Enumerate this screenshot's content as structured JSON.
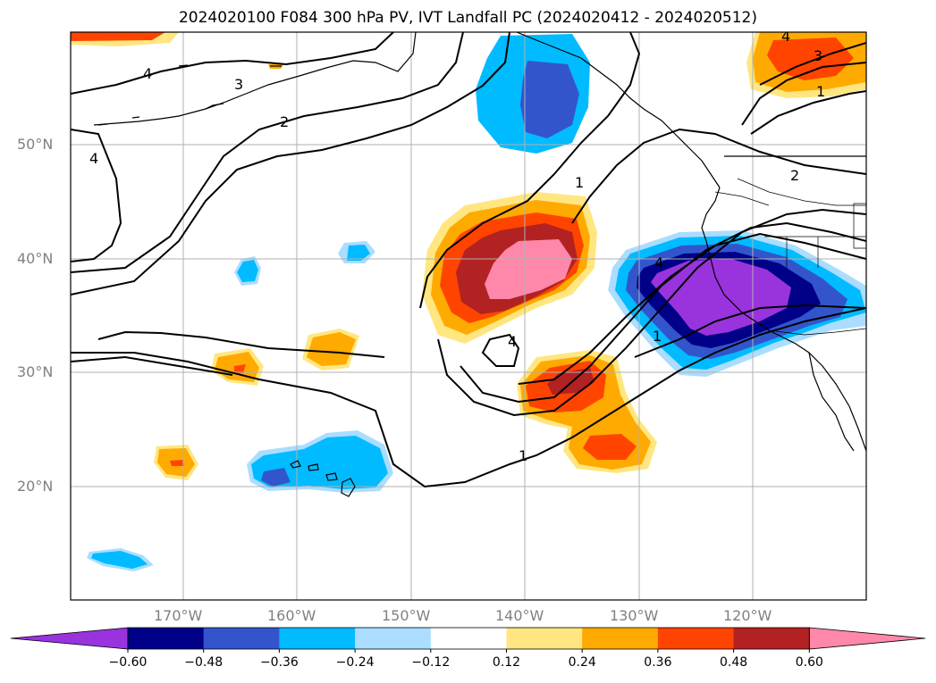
{
  "title": "2024020100 F084 300 hPa PV, IVT Landfall PC (2024020412 - 2024020512)",
  "lat_labels": [
    "50°N",
    "40°N",
    "30°N",
    "20°N"
  ],
  "lon_labels": [
    "170°W",
    "160°W",
    "150°W",
    "140°W",
    "130°W",
    "120°W"
  ],
  "colorbar": {
    "ticks": [
      "−0.60",
      "−0.48",
      "−0.36",
      "−0.24",
      "−0.12",
      "0.12",
      "0.24",
      "0.36",
      "0.48",
      "0.60"
    ],
    "colors": [
      "#9933dd",
      "#000088",
      "#3355cc",
      "#00bbff",
      "#aaddff",
      "#ffffff",
      "#ffe680",
      "#ffaa00",
      "#ff4400",
      "#b22222",
      "#ff88aa"
    ]
  },
  "contour_labels": [
    "4",
    "3",
    "2",
    "4",
    "1",
    "4",
    "3",
    "1",
    "2",
    "4",
    "1",
    "1",
    "4"
  ],
  "colors": {
    "coast": "#000000",
    "grid": "#b0b0b0",
    "contour": "#000000"
  }
}
